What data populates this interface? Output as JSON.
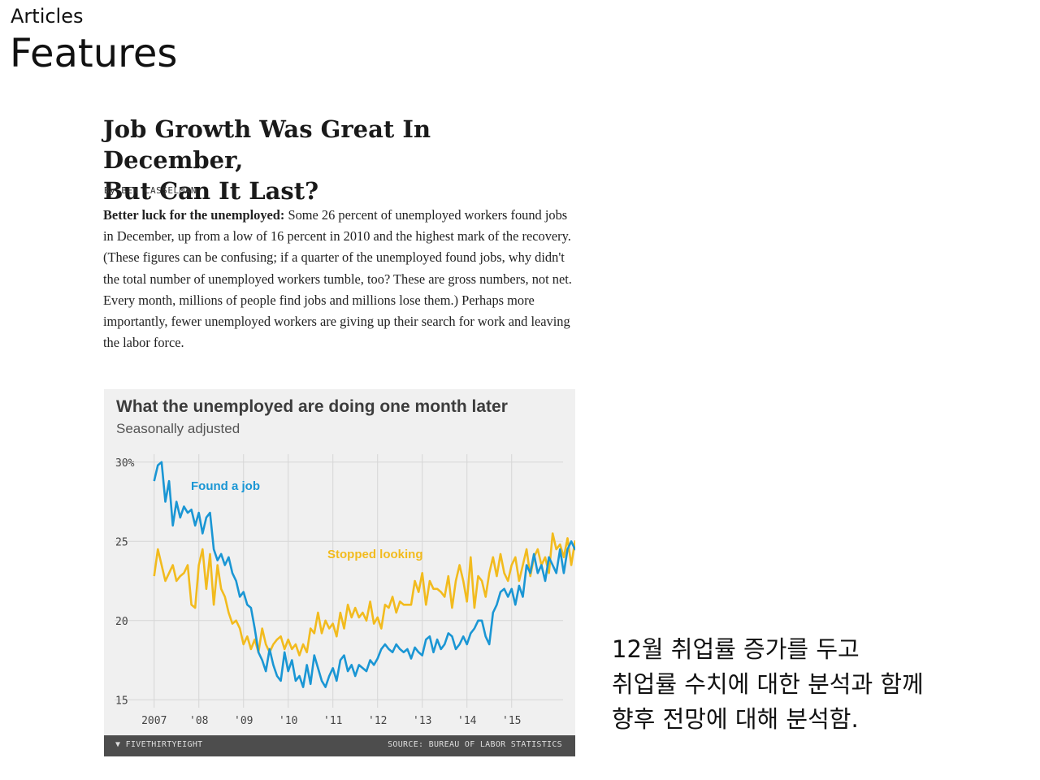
{
  "header": {
    "section": "Articles",
    "page_title": "Features"
  },
  "article": {
    "title_line1": "Job Growth Was Great In December,",
    "title_line2": "But Can It Last?",
    "byline": "By BEN CASSELMAN",
    "lead_bold": "Better luck for the unemployed:",
    "lead_text": " Some 26 percent of unemployed workers found jobs in December, up from a low of 16 percent in 2010 and the highest mark of the recovery. (These figures can be confusing; if a quarter of the unemployed found jobs, why didn't the total number of unemployed workers tumble, too? These are gross numbers, not net. Every month, millions of people find jobs and millions lose them.) Perhaps more importantly, fewer unemployed workers are giving up their search for work and leaving the labor force."
  },
  "chart_data": {
    "type": "line",
    "title": "What the unemployed are doing one month later",
    "subtitle": "Seasonally adjusted",
    "y_ticks": [
      "30%",
      "25",
      "20",
      "15"
    ],
    "y_tick_values": [
      30,
      25,
      20,
      15
    ],
    "x_ticks": [
      "2007",
      "'08",
      "'09",
      "'10",
      "'11",
      "'12",
      "'13",
      "'14",
      "'15"
    ],
    "x_tick_values": [
      2007,
      2008,
      2009,
      2010,
      2011,
      2012,
      2013,
      2014,
      2015
    ],
    "ylim": [
      14.5,
      30.5
    ],
    "xlim": [
      2006.75,
      2016.15
    ],
    "grid": true,
    "colors": {
      "found": "#1a96d4",
      "stopped": "#f2bb1e"
    },
    "annotations": {
      "found": "Found a job",
      "stopped": "Stopped looking"
    },
    "source": "SOURCE: BUREAU OF LABOR STATISTICS",
    "brand": "FIVETHIRTYEIGHT",
    "series": [
      {
        "name": "Found a job",
        "start_year": 2007,
        "step_months": 1,
        "values": [
          28.8,
          29.8,
          30.0,
          27.5,
          28.8,
          26.0,
          27.5,
          26.5,
          27.2,
          26.8,
          27.0,
          26.0,
          26.8,
          25.5,
          26.5,
          26.8,
          24.5,
          23.8,
          24.2,
          23.5,
          24.0,
          23.0,
          22.5,
          21.5,
          21.8,
          21.0,
          20.8,
          19.5,
          18.0,
          17.5,
          16.8,
          18.2,
          17.2,
          16.5,
          16.2,
          18.0,
          16.8,
          17.5,
          16.2,
          16.5,
          15.8,
          17.2,
          16.0,
          17.8,
          17.0,
          16.2,
          15.8,
          16.5,
          17.0,
          16.2,
          17.5,
          17.8,
          16.8,
          17.2,
          16.5,
          17.2,
          17.0,
          16.8,
          17.5,
          17.2,
          17.6,
          18.2,
          18.5,
          18.2,
          18.0,
          18.5,
          18.2,
          18.0,
          18.2,
          17.6,
          18.3,
          18.0,
          17.8,
          18.8,
          19.0,
          18.0,
          18.8,
          18.2,
          18.5,
          19.2,
          19.0,
          18.2,
          18.5,
          19.0,
          18.5,
          19.2,
          19.5,
          20.0,
          20.0,
          19.0,
          18.5,
          20.5,
          21.0,
          21.8,
          22.0,
          21.5,
          22.0,
          21.0,
          22.2,
          21.5,
          23.5,
          23.0,
          24.2,
          23.0,
          23.5,
          22.5,
          24.0,
          23.5,
          23.0,
          24.5,
          23.0,
          24.5,
          25.0,
          24.5,
          24.8,
          25.5,
          26.0
        ]
      },
      {
        "name": "Stopped looking",
        "start_year": 2007,
        "step_months": 1,
        "values": [
          22.8,
          24.5,
          23.5,
          22.5,
          23.0,
          23.5,
          22.5,
          22.8,
          23.0,
          23.5,
          21.0,
          20.8,
          23.5,
          24.5,
          22.0,
          24.2,
          21.0,
          23.5,
          22.0,
          21.5,
          20.5,
          19.8,
          20.0,
          19.5,
          18.5,
          19.0,
          18.2,
          18.8,
          18.0,
          19.5,
          18.5,
          18.0,
          18.5,
          18.8,
          19.0,
          18.2,
          18.8,
          18.2,
          18.5,
          17.8,
          18.5,
          18.0,
          19.5,
          19.2,
          20.5,
          19.2,
          20.0,
          19.5,
          19.8,
          19.0,
          20.5,
          19.5,
          21.0,
          20.2,
          20.8,
          20.2,
          20.5,
          20.0,
          21.2,
          19.8,
          20.2,
          19.5,
          21.0,
          20.8,
          21.5,
          20.5,
          21.2,
          21.0,
          21.0,
          21.0,
          22.5,
          21.8,
          23.0,
          21.0,
          22.5,
          22.0,
          22.0,
          21.8,
          21.5,
          22.8,
          20.8,
          22.5,
          23.5,
          22.5,
          21.2,
          24.0,
          20.8,
          22.8,
          22.5,
          21.5,
          23.0,
          24.0,
          22.8,
          24.2,
          23.0,
          22.5,
          23.5,
          24.0,
          22.5,
          23.5,
          24.5,
          22.8,
          24.0,
          24.5,
          23.5,
          24.0,
          23.0,
          25.5,
          24.5,
          24.8,
          24.0,
          25.2,
          23.5,
          25.0,
          24.0,
          23.2,
          22.8,
          23.2
        ]
      }
    ]
  },
  "note": {
    "line1": "12월 취업률 증가를 두고",
    "line2": "취업률 수치에 대한 분석과 함께",
    "line3": "향후 전망에 대해 분석함."
  }
}
